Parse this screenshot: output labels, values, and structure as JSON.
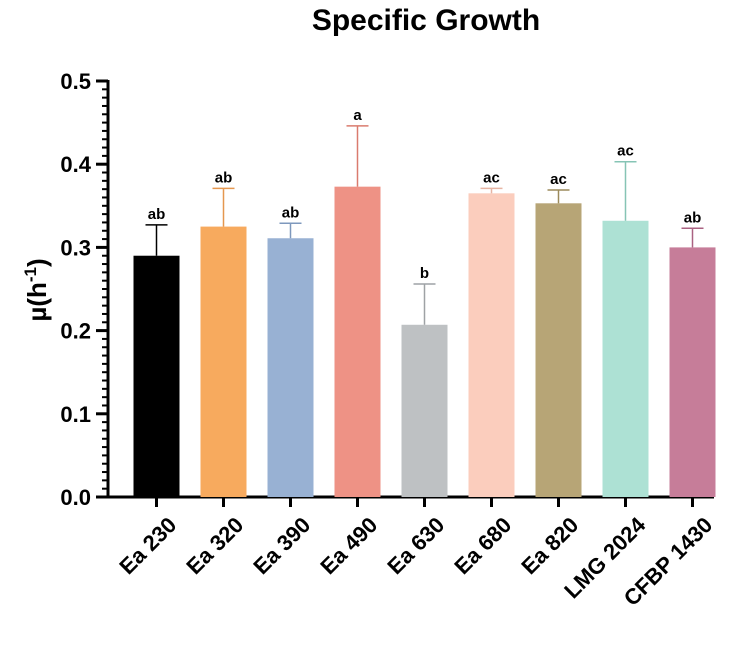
{
  "chart_data": {
    "type": "bar",
    "title": "Specific Growth",
    "xlabel": "",
    "ylabel": "µ(h",
    "ylabel_exponent": "-1",
    "ylabel_close": ")",
    "ylim": [
      0,
      0.5
    ],
    "yticks": [
      {
        "value": 0.0,
        "label": "0.0"
      },
      {
        "value": 0.1,
        "label": "0.1"
      },
      {
        "value": 0.2,
        "label": "0.2"
      },
      {
        "value": 0.3,
        "label": "0.3"
      },
      {
        "value": 0.4,
        "label": "0.4"
      },
      {
        "value": 0.5,
        "label": "0.5"
      }
    ],
    "categories": [
      "Ea 230",
      "Ea 320",
      "Ea 390",
      "Ea 490",
      "Ea 630",
      "Ea 680",
      "Ea 820",
      "LMG 2024",
      "CFBP 1430"
    ],
    "values": [
      0.29,
      0.325,
      0.311,
      0.373,
      0.207,
      0.365,
      0.353,
      0.332,
      0.3
    ],
    "errors": [
      0.037,
      0.046,
      0.018,
      0.073,
      0.049,
      0.006,
      0.016,
      0.071,
      0.023
    ],
    "significance": [
      "ab",
      "ab",
      "ab",
      "a",
      "b",
      "ac",
      "ac",
      "ac",
      "ab"
    ],
    "colors": [
      "#000000",
      "#F7AA5E",
      "#98B1D3",
      "#EE9285",
      "#BEC1C3",
      "#FBCDBD",
      "#B7A576",
      "#ADE1D4",
      "#C67D99"
    ],
    "error_colors": [
      "#000000",
      "#E5974F",
      "#7E98BD",
      "#DA7B6E",
      "#9EA2A5",
      "#E7B4A3",
      "#9C8A5B",
      "#86C4B5",
      "#AA6282"
    ]
  }
}
